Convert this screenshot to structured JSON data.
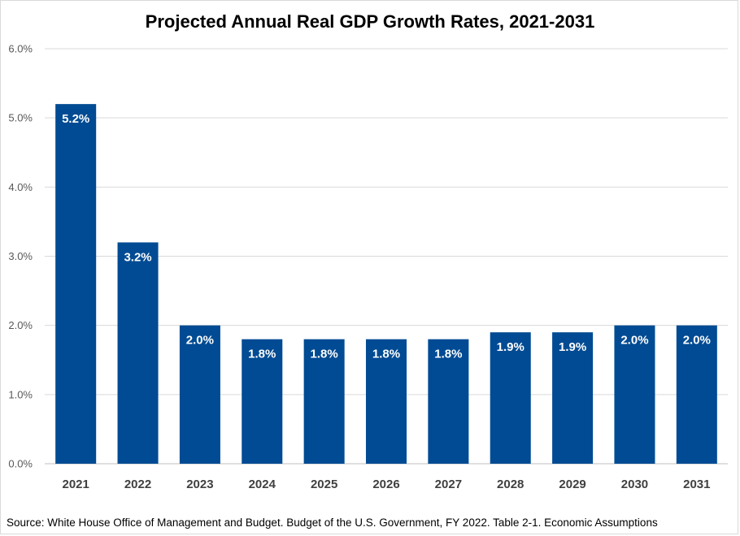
{
  "chart_data": {
    "type": "bar",
    "title": "Projected Annual Real GDP Growth Rates, 2021-2031",
    "categories": [
      "2021",
      "2022",
      "2023",
      "2024",
      "2025",
      "2026",
      "2027",
      "2028",
      "2029",
      "2030",
      "2031"
    ],
    "values": [
      5.2,
      3.2,
      2.0,
      1.8,
      1.8,
      1.8,
      1.8,
      1.9,
      1.9,
      2.0,
      2.0
    ],
    "data_labels": [
      "5.2%",
      "3.2%",
      "2.0%",
      "1.8%",
      "1.8%",
      "1.8%",
      "1.8%",
      "1.9%",
      "1.9%",
      "2.0%",
      "2.0%"
    ],
    "y_ticks": [
      "0.0%",
      "1.0%",
      "2.0%",
      "3.0%",
      "4.0%",
      "5.0%",
      "6.0%"
    ],
    "ylim": [
      0,
      6
    ],
    "xlabel": "",
    "ylabel": "",
    "grid": true,
    "legend": "none",
    "bar_color": "#004b93",
    "gridline_color": "#d9d9d9"
  },
  "source": "Source: White House Office of Management and Budget. Budget of the U.S. Government,  FY 2022. Table 2-1. Economic Assumptions"
}
